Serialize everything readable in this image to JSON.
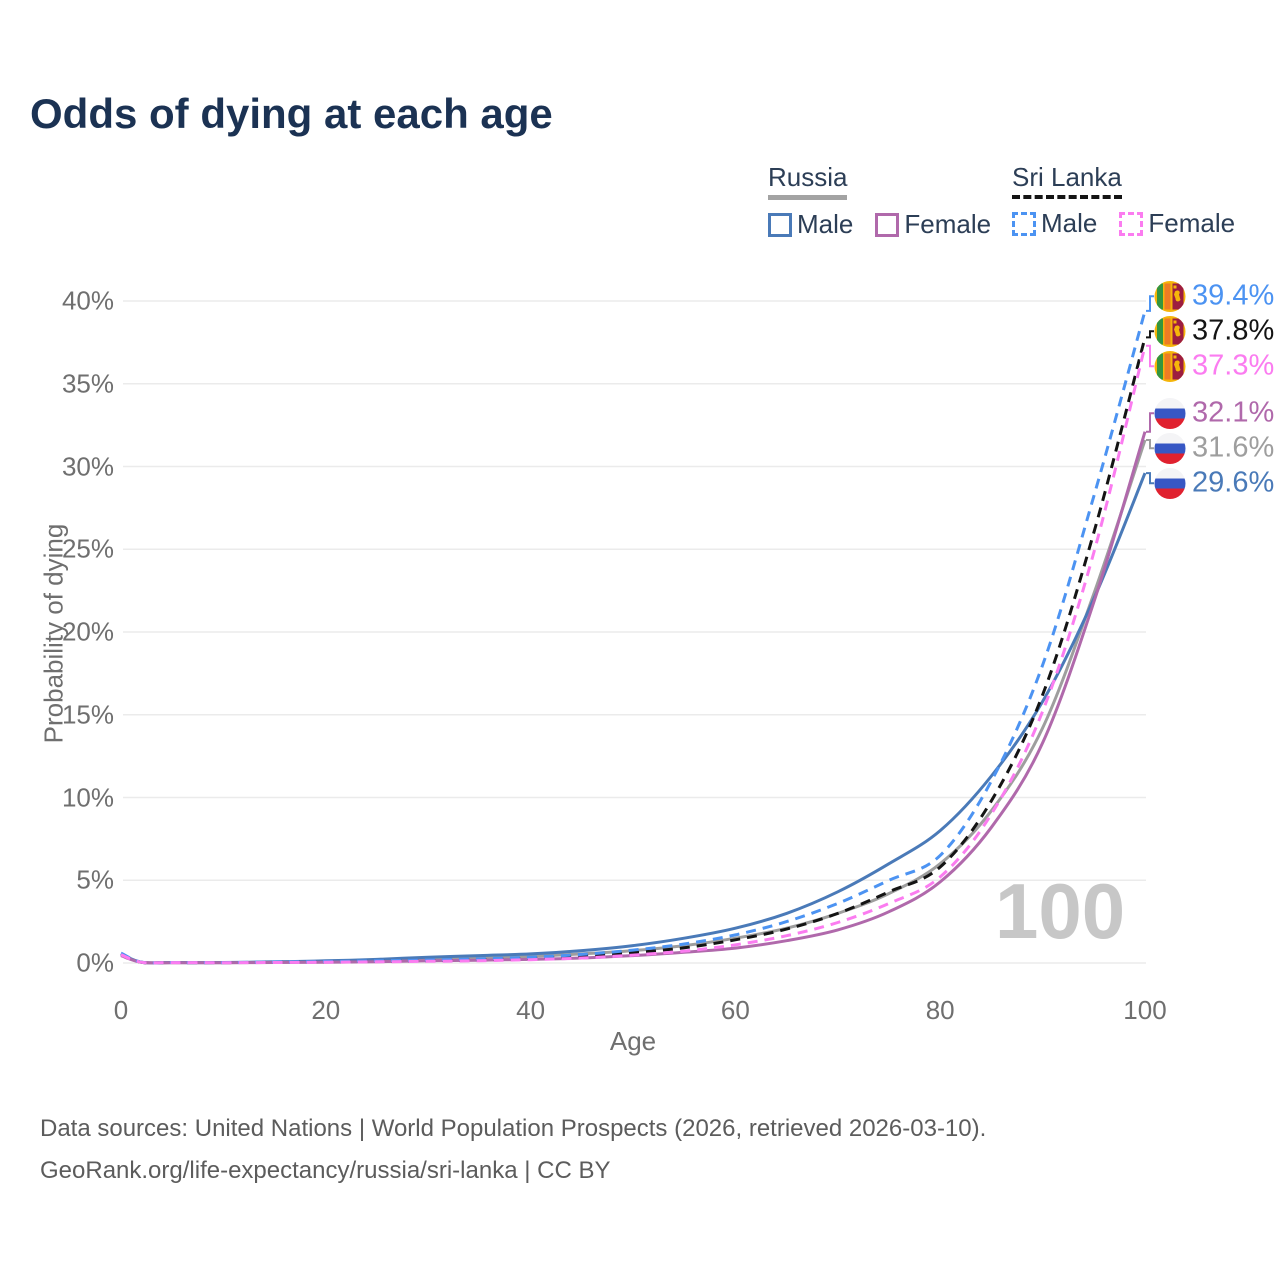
{
  "title": "Odds of dying at each age",
  "legend": {
    "russia": {
      "label": "Russia",
      "male": "Male",
      "female": "Female"
    },
    "sri_lanka": {
      "label": "Sri Lanka",
      "male": "Male",
      "female": "Female"
    }
  },
  "axes": {
    "x_title": "Age",
    "y_title": "Probability of dying",
    "x_ticks": [
      0,
      20,
      40,
      60,
      80,
      100
    ],
    "y_ticks": [
      "0%",
      "5%",
      "10%",
      "15%",
      "20%",
      "25%",
      "30%",
      "35%",
      "40%"
    ],
    "x_range": [
      0,
      100
    ],
    "y_range_pct": [
      0,
      40
    ],
    "grid": "horizontal-only"
  },
  "watermark": "100",
  "footer": {
    "line1": "Data sources: United Nations | World Population Prospects (2026, retrieved 2026-03-10).",
    "line2": "GeoRank.org/life-expectancy/russia/sri-lanka | CC BY"
  },
  "colors": {
    "russia_male": "#4a7ab8",
    "russia_female": "#b069ab",
    "russia_both": "#9e9e9e",
    "sri_lanka_male": "#4c93f2",
    "sri_lanka_female": "#fb7cf0",
    "sri_lanka_both": "#141414",
    "title_text": "#1b3253",
    "axis_text": "#6f6f6f",
    "gridline": "#ebebeb"
  },
  "chart_data": {
    "type": "line",
    "title": "Odds of dying at each age",
    "xlabel": "Age",
    "ylabel": "Probability of dying",
    "xlim": [
      0,
      100
    ],
    "ylim_pct": [
      0,
      40
    ],
    "legend_position": "top-right",
    "x_ages": [
      0,
      2,
      5,
      10,
      15,
      20,
      25,
      30,
      35,
      40,
      45,
      50,
      55,
      60,
      65,
      70,
      75,
      80,
      85,
      90,
      95,
      100
    ],
    "series": [
      {
        "id": "russia-both",
        "name": "Russia (both sexes)",
        "country": "Russia",
        "flag": "russia",
        "color": "#9e9e9e",
        "dashed": false,
        "end_label": "31.6%",
        "end_value_pct": 31.6,
        "values_pct": [
          0.5,
          0.045,
          0.025,
          0.025,
          0.05,
          0.09,
          0.15,
          0.25,
          0.32,
          0.4,
          0.55,
          0.75,
          1.05,
          1.5,
          2.1,
          3.0,
          4.2,
          6.0,
          9.2,
          14.2,
          22.3,
          31.6
        ]
      },
      {
        "id": "russia-male",
        "name": "Russia Male",
        "country": "Russia",
        "flag": "russia",
        "color": "#4a7ab8",
        "dashed": false,
        "end_label": "29.6%",
        "end_value_pct": 29.6,
        "values_pct": [
          0.55,
          0.05,
          0.03,
          0.03,
          0.07,
          0.13,
          0.22,
          0.35,
          0.45,
          0.55,
          0.75,
          1.05,
          1.5,
          2.1,
          3.0,
          4.3,
          6.0,
          8.0,
          11.3,
          15.8,
          22.0,
          29.6
        ]
      },
      {
        "id": "russia-female",
        "name": "Russia Female",
        "country": "Russia",
        "flag": "russia",
        "color": "#b069ab",
        "dashed": false,
        "end_label": "32.1%",
        "end_value_pct": 32.1,
        "values_pct": [
          0.45,
          0.04,
          0.02,
          0.02,
          0.03,
          0.05,
          0.08,
          0.13,
          0.17,
          0.22,
          0.3,
          0.45,
          0.65,
          0.9,
          1.35,
          2.0,
          3.1,
          4.9,
          8.2,
          13.3,
          21.8,
          32.1
        ]
      },
      {
        "id": "srilanka-both",
        "name": "Sri Lanka (both sexes)",
        "country": "Sri Lanka",
        "flag": "sri-lanka",
        "color": "#141414",
        "dashed": true,
        "end_label": "37.8%",
        "end_value_pct": 37.8,
        "values_pct": [
          0.55,
          0.045,
          0.028,
          0.022,
          0.045,
          0.07,
          0.1,
          0.14,
          0.2,
          0.28,
          0.42,
          0.62,
          0.92,
          1.4,
          2.05,
          3.0,
          4.3,
          5.8,
          9.8,
          16.2,
          26.0,
          37.8
        ]
      },
      {
        "id": "srilanka-male",
        "name": "Sri Lanka Male",
        "country": "Sri Lanka",
        "flag": "sri-lanka",
        "color": "#4c93f2",
        "dashed": true,
        "end_label": "39.4%",
        "end_value_pct": 39.4,
        "values_pct": [
          0.6,
          0.05,
          0.03,
          0.025,
          0.06,
          0.09,
          0.13,
          0.18,
          0.25,
          0.35,
          0.52,
          0.78,
          1.15,
          1.7,
          2.5,
          3.6,
          5.0,
          6.5,
          11.0,
          18.0,
          28.2,
          39.4
        ]
      },
      {
        "id": "srilanka-female",
        "name": "Sri Lanka Female",
        "country": "Sri Lanka",
        "flag": "sri-lanka",
        "color": "#fb7cf0",
        "dashed": true,
        "end_label": "37.3%",
        "end_value_pct": 37.3,
        "values_pct": [
          0.5,
          0.04,
          0.025,
          0.018,
          0.03,
          0.05,
          0.07,
          0.1,
          0.14,
          0.2,
          0.3,
          0.48,
          0.72,
          1.1,
          1.65,
          2.45,
          3.6,
          5.2,
          9.0,
          15.2,
          24.8,
          37.3
        ]
      }
    ]
  }
}
